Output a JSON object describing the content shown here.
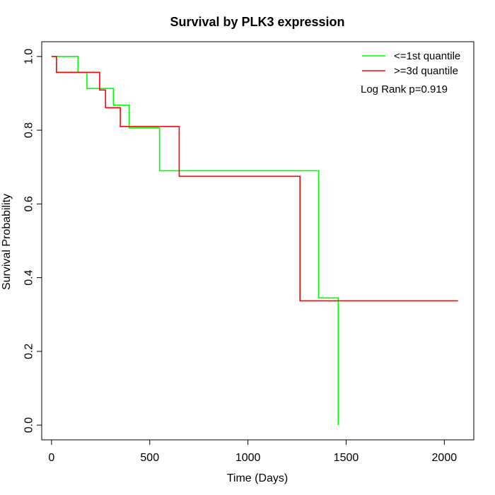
{
  "chart_data": {
    "type": "line",
    "step": true,
    "title": "Survival by PLK3 expression",
    "xlabel": "Time (Days)",
    "ylabel": "Survival Probability",
    "xlim": [
      -50,
      2150
    ],
    "ylim": [
      -0.04,
      1.04
    ],
    "xticks": [
      0,
      500,
      1000,
      1500,
      2000
    ],
    "xtick_labels": [
      "0",
      "500",
      "1000",
      "1500",
      "2000"
    ],
    "yticks": [
      0.0,
      0.2,
      0.4,
      0.6,
      0.8,
      1.0
    ],
    "ytick_labels": [
      "0.0",
      "0.2",
      "0.4",
      "0.6",
      "0.8",
      "1.0"
    ],
    "grid": false,
    "legend_position": "top-right",
    "annotation": "Log Rank p=0.919",
    "series": [
      {
        "name": "<=1st quantile",
        "color": "#00ff00",
        "x": [
          0,
          135,
          135,
          180,
          180,
          315,
          315,
          395,
          395,
          550,
          550,
          1360,
          1360,
          1460,
          1460
        ],
        "y": [
          1.0,
          1.0,
          0.957,
          0.957,
          0.913,
          0.913,
          0.868,
          0.868,
          0.806,
          0.806,
          0.69,
          0.69,
          0.345,
          0.345,
          0.0
        ]
      },
      {
        "name": ">=3d quantile",
        "color": "#ff0000",
        "x": [
          0,
          25,
          25,
          245,
          245,
          275,
          275,
          350,
          350,
          650,
          650,
          1265,
          1265,
          2070
        ],
        "y": [
          1.0,
          1.0,
          0.957,
          0.957,
          0.909,
          0.909,
          0.861,
          0.861,
          0.81,
          0.81,
          0.675,
          0.675,
          0.337,
          0.337
        ]
      }
    ]
  }
}
